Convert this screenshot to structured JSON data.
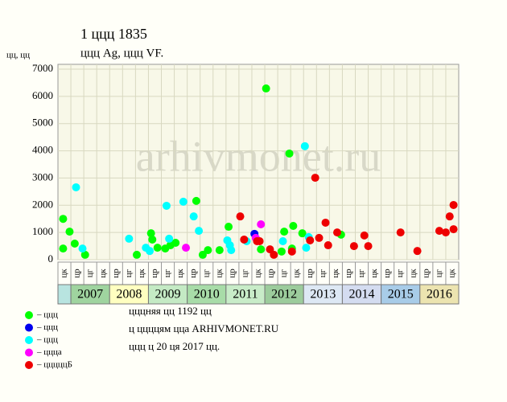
{
  "chart_data": {
    "type": "scatter",
    "title": "1 ццц 1835",
    "subtitle": "ццц Ag, ццц VF.",
    "y_label": "цц, цц",
    "watermark": "arhivmonet.ru",
    "notes": [
      "цццняя цц 1192 цц",
      "ц ццццям цца ARHIVMONET.RU",
      "ццц ц 20 ця 2017 цц."
    ],
    "categories": [
      "цк",
      "цр",
      "цг",
      "цк",
      "цр",
      "цг",
      "цк",
      "цр",
      "цг",
      "цк",
      "цр",
      "цг",
      "цк",
      "цр",
      "цг",
      "цк",
      "цр",
      "цг",
      "цк",
      "цр",
      "цг",
      "цк",
      "цр",
      "цг",
      "цк",
      "цр",
      "цг",
      "цк",
      "цр",
      "цг",
      "цк"
    ],
    "years": [
      null,
      "2007",
      "2008",
      "2009",
      "2010",
      "2011",
      "2012",
      "2013",
      "2014",
      "2015",
      "2016"
    ],
    "year_colors": [
      "#b8e4e0",
      "#9fd49f",
      "#ffffc0",
      "#c4eac4",
      "#a8dca8",
      "#c8ecc8",
      "#9ccc9c",
      "#dde8f4",
      "#d4dcf0",
      "#a8cce8",
      "#ece4b0"
    ],
    "xlim": [
      0,
      31
    ],
    "ylim": [
      0,
      7000
    ],
    "yticks": [
      0,
      1000,
      2000,
      3000,
      4000,
      5000,
      6000,
      7000
    ],
    "grid": true,
    "series": [
      {
        "name": "– ццц",
        "color": "#00ff00",
        "x": [
          0.4,
          0.4,
          0.9,
          1.3,
          2.1,
          6.1,
          7.2,
          7.3,
          7.7,
          8.3,
          8.7,
          9.1,
          10.7,
          11.2,
          11.6,
          12.5,
          13.2,
          15.7,
          16.1,
          17.3,
          17.5,
          17.9,
          18.1,
          18.2,
          18.9,
          21.9
        ],
        "values": [
          410,
          1500,
          1030,
          590,
          180,
          180,
          970,
          740,
          440,
          410,
          530,
          620,
          2160,
          180,
          350,
          350,
          1210,
          380,
          6290,
          300,
          1030,
          3900,
          410,
          1240,
          970,
          920
        ]
      },
      {
        "name": "– ццц",
        "color": "#0000ee",
        "x": [
          15.2
        ],
        "values": [
          950
        ]
      },
      {
        "name": "– ццц",
        "color": "#00ffff",
        "x": [
          1.4,
          1.9,
          5.5,
          6.8,
          7.1,
          8.4,
          8.6,
          9.7,
          10.5,
          10.9,
          13.1,
          13.3,
          13.4,
          14.6,
          17.4,
          19.1,
          19.2,
          19.4
        ],
        "values": [
          2660,
          410,
          770,
          440,
          320,
          1980,
          770,
          2130,
          1590,
          1060,
          710,
          530,
          350,
          680,
          680,
          4170,
          440,
          830
        ]
      },
      {
        "name": "– ццца",
        "color": "#ff00ff",
        "x": [
          9.9,
          15.3,
          15.7
        ],
        "values": [
          440,
          800,
          1300
        ]
      },
      {
        "name": "– цццццБ",
        "color": "#ee0000",
        "x": [
          14.1,
          14.4,
          15.4,
          15.6,
          16.4,
          16.7,
          18.1,
          19.5,
          19.9,
          20.2,
          20.7,
          20.9,
          21.6,
          22.9,
          23.7,
          24.0,
          26.5,
          27.8,
          29.5,
          30.0,
          30.3,
          30.6,
          30.6
        ],
        "values": [
          1590,
          740,
          680,
          680,
          380,
          180,
          300,
          710,
          3010,
          800,
          1360,
          530,
          1000,
          500,
          890,
          500,
          1000,
          320,
          1060,
          1000,
          1590,
          1120,
          2010
        ]
      }
    ]
  }
}
